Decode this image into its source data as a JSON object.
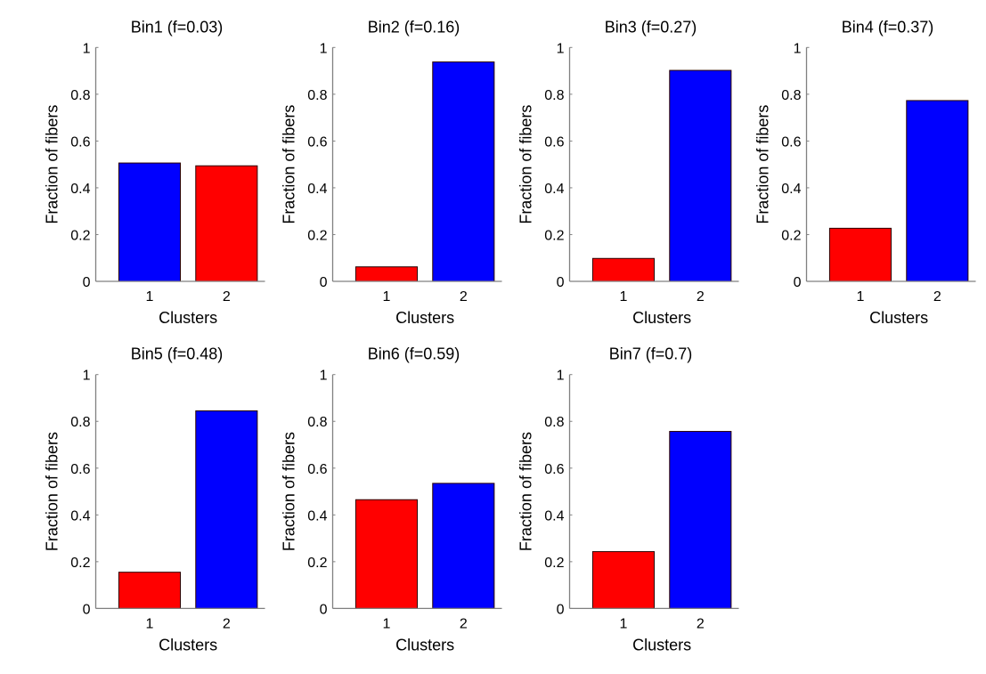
{
  "chart_data": [
    {
      "type": "bar",
      "title": "Bin1 (f=0.03)",
      "xlabel": "Clusters",
      "ylabel": "Fraction of fibers",
      "categories": [
        "1",
        "2"
      ],
      "values": [
        0.506,
        0.494
      ],
      "bar_colors": [
        "#0000ff",
        "#ff0000"
      ],
      "ylim": [
        0,
        1
      ],
      "yticks": [
        "0",
        "0.2",
        "0.4",
        "0.6",
        "0.8",
        "1"
      ],
      "grid": false
    },
    {
      "type": "bar",
      "title": "Bin2 (f=0.16)",
      "xlabel": "Clusters",
      "ylabel": "Fraction of fibers",
      "categories": [
        "1",
        "2"
      ],
      "values": [
        0.062,
        0.938
      ],
      "bar_colors": [
        "#ff0000",
        "#0000ff"
      ],
      "ylim": [
        0,
        1
      ],
      "yticks": [
        "0",
        "0.2",
        "0.4",
        "0.6",
        "0.8",
        "1"
      ],
      "grid": false
    },
    {
      "type": "bar",
      "title": "Bin3 (f=0.27)",
      "xlabel": "Clusters",
      "ylabel": "Fraction of fibers",
      "categories": [
        "1",
        "2"
      ],
      "values": [
        0.098,
        0.902
      ],
      "bar_colors": [
        "#ff0000",
        "#0000ff"
      ],
      "ylim": [
        0,
        1
      ],
      "yticks": [
        "0",
        "0.2",
        "0.4",
        "0.6",
        "0.8",
        "1"
      ],
      "grid": false
    },
    {
      "type": "bar",
      "title": "Bin4 (f=0.37)",
      "xlabel": "Clusters",
      "ylabel": "Fraction of fibers",
      "categories": [
        "1",
        "2"
      ],
      "values": [
        0.227,
        0.773
      ],
      "bar_colors": [
        "#ff0000",
        "#0000ff"
      ],
      "ylim": [
        0,
        1
      ],
      "yticks": [
        "0",
        "0.2",
        "0.4",
        "0.6",
        "0.8",
        "1"
      ],
      "grid": false
    },
    {
      "type": "bar",
      "title": "Bin5 (f=0.48)",
      "xlabel": "Clusters",
      "ylabel": "Fraction of fibers",
      "categories": [
        "1",
        "2"
      ],
      "values": [
        0.155,
        0.845
      ],
      "bar_colors": [
        "#ff0000",
        "#0000ff"
      ],
      "ylim": [
        0,
        1
      ],
      "yticks": [
        "0",
        "0.2",
        "0.4",
        "0.6",
        "0.8",
        "1"
      ],
      "grid": false
    },
    {
      "type": "bar",
      "title": "Bin6 (f=0.59)",
      "xlabel": "Clusters",
      "ylabel": "Fraction of fibers",
      "categories": [
        "1",
        "2"
      ],
      "values": [
        0.465,
        0.535
      ],
      "bar_colors": [
        "#ff0000",
        "#0000ff"
      ],
      "ylim": [
        0,
        1
      ],
      "yticks": [
        "0",
        "0.2",
        "0.4",
        "0.6",
        "0.8",
        "1"
      ],
      "grid": false
    },
    {
      "type": "bar",
      "title": "Bin7 (f=0.7)",
      "xlabel": "Clusters",
      "ylabel": "Fraction of fibers",
      "categories": [
        "1",
        "2"
      ],
      "values": [
        0.243,
        0.757
      ],
      "bar_colors": [
        "#ff0000",
        "#0000ff"
      ],
      "ylim": [
        0,
        1
      ],
      "yticks": [
        "0",
        "0.2",
        "0.4",
        "0.6",
        "0.8",
        "1"
      ],
      "grid": false
    }
  ]
}
